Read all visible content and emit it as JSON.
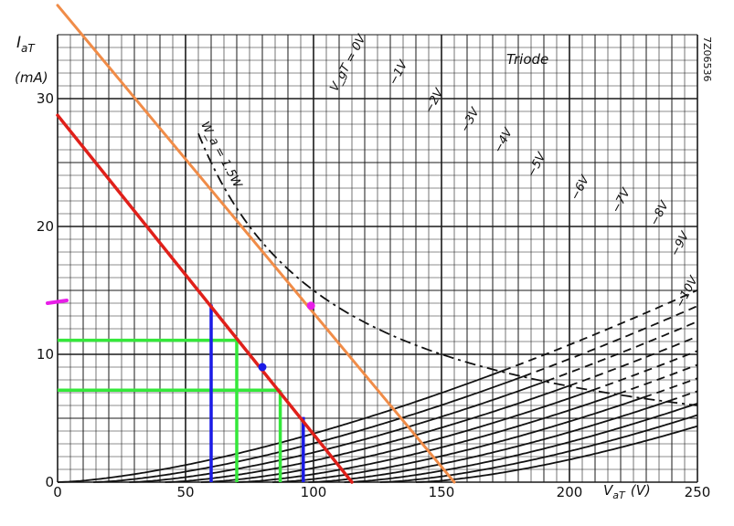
{
  "chart_data": {
    "type": "line",
    "title": "Triode",
    "code": "7Z06536",
    "ylabel": "I",
    "ylabel_sub": "aT",
    "yunit": "(mA)",
    "xlabel": "V",
    "xlabel_sub": "aT",
    "xunit": "(V)",
    "xlim": [
      0,
      250
    ],
    "ylim": [
      0,
      35
    ],
    "grid": true,
    "x_ticks": [
      {
        "value": 0,
        "label": "0"
      },
      {
        "value": 50,
        "label": "50"
      },
      {
        "value": 100,
        "label": "100"
      },
      {
        "value": 150,
        "label": "150"
      },
      {
        "value": 200,
        "label": "200"
      },
      {
        "value": 250,
        "label": "250"
      }
    ],
    "y_ticks": [
      {
        "value": 0,
        "label": "0"
      },
      {
        "value": 10,
        "label": "10"
      },
      {
        "value": 20,
        "label": "20"
      },
      {
        "value": 30,
        "label": "30"
      }
    ],
    "grid_curves": {
      "k": 0.0038,
      "exponent": 1.5,
      "mu": 14,
      "series": [
        {
          "vg": 0,
          "label": "V_gT = 0V",
          "label_x": 109,
          "label_y": 30.5
        },
        {
          "vg": -1,
          "label": "−1V",
          "label_x": 132,
          "label_y": 31.0
        },
        {
          "vg": -2,
          "label": "−2V",
          "label_x": 146,
          "label_y": 28.8
        },
        {
          "vg": -3,
          "label": "−3V",
          "label_x": 160,
          "label_y": 27.3
        },
        {
          "vg": -4,
          "label": "−4V",
          "label_x": 173,
          "label_y": 25.7
        },
        {
          "vg": -5,
          "label": "−5V",
          "label_x": 186,
          "label_y": 23.8
        },
        {
          "vg": -6,
          "label": "−6V",
          "label_x": 203,
          "label_y": 22.0
        },
        {
          "vg": -7,
          "label": "−7V",
          "label_x": 219,
          "label_y": 21.0
        },
        {
          "vg": -8,
          "label": "−8V",
          "label_x": 234,
          "label_y": 20.0
        },
        {
          "vg": -9,
          "label": "−9V",
          "label_x": 242,
          "label_y": 17.6
        },
        {
          "vg": -10,
          "label": "−10V",
          "label_x": 244,
          "label_y": 13.6
        }
      ]
    },
    "power_hyperbola": {
      "label": "W_a = 1.5W",
      "label_x": 56,
      "label_y": 28.0,
      "watts": 1.5,
      "x_from": 55,
      "x_to": 250
    },
    "overlays": [
      {
        "name": "load-line-red",
        "color": "#e0201a",
        "x": [
          0,
          115
        ],
        "y": [
          28.7,
          0
        ]
      },
      {
        "name": "load-line-orange",
        "color": "#f08c48",
        "x": [
          0,
          155
        ],
        "y": [
          37.3,
          0
        ]
      },
      {
        "name": "operating-point-blue",
        "color": "#1a1ae6",
        "x": 80,
        "y": 9.0
      },
      {
        "name": "operating-point-magenta",
        "color": "#e81ee8",
        "x": 99,
        "y": 13.8
      }
    ],
    "projections": {
      "green": [
        {
          "x": 70,
          "y": 11.1
        },
        {
          "x": 87,
          "y": 7.2
        }
      ],
      "blue": [
        {
          "x": 60,
          "y": 13.9
        },
        {
          "x": 96,
          "y": 5.1
        }
      ]
    },
    "marker_y": 14.0
  },
  "colors": {
    "grid": "#1a1a1a",
    "curve": "#111111",
    "green": "#34e83a",
    "blue": "#1a1ae6",
    "red": "#e0201a",
    "orange": "#f08c48",
    "magenta": "#e81ee8"
  }
}
